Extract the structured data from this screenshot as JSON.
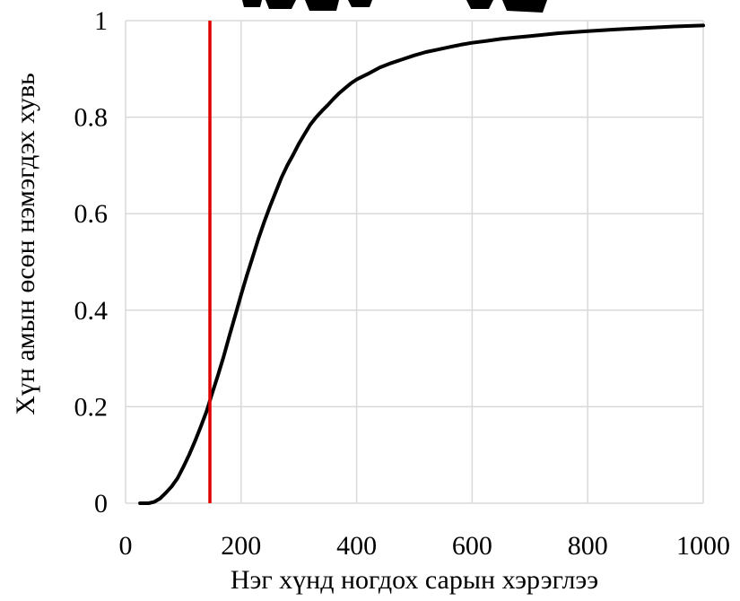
{
  "chart_data": {
    "type": "line",
    "title": "",
    "xlabel": "Нэг хүнд ногдох сарын хэрэглээ",
    "ylabel": "Хүн амын өсөн нэмэгдэх хувь",
    "xlim": [
      0,
      1000
    ],
    "ylim": [
      0,
      1
    ],
    "x_ticks": [
      0,
      200,
      400,
      600,
      800,
      1000
    ],
    "y_ticks": [
      0,
      0.2,
      0.4,
      0.6,
      0.8,
      1
    ],
    "y_tick_labels": [
      "0",
      "0.2",
      "0.4",
      "0.6",
      "0.8",
      "1"
    ],
    "grid": true,
    "series": [
      {
        "color": "#000000",
        "x": [
          25,
          40,
          50,
          60,
          70,
          80,
          90,
          100,
          110,
          120,
          130,
          140,
          150,
          160,
          170,
          180,
          190,
          200,
          210,
          220,
          230,
          240,
          250,
          260,
          270,
          280,
          290,
          300,
          310,
          320,
          330,
          340,
          350,
          360,
          370,
          380,
          390,
          400,
          420,
          440,
          460,
          480,
          500,
          520,
          540,
          560,
          580,
          600,
          625,
          650,
          675,
          700,
          725,
          750,
          800,
          850,
          900,
          950,
          1000
        ],
        "y": [
          0.0,
          0.0,
          0.003,
          0.01,
          0.022,
          0.035,
          0.052,
          0.075,
          0.1,
          0.128,
          0.158,
          0.19,
          0.228,
          0.265,
          0.305,
          0.348,
          0.39,
          0.432,
          0.472,
          0.51,
          0.548,
          0.583,
          0.615,
          0.645,
          0.675,
          0.7,
          0.722,
          0.745,
          0.765,
          0.785,
          0.8,
          0.813,
          0.825,
          0.838,
          0.85,
          0.86,
          0.87,
          0.878,
          0.89,
          0.903,
          0.912,
          0.92,
          0.928,
          0.935,
          0.94,
          0.945,
          0.95,
          0.954,
          0.958,
          0.962,
          0.965,
          0.968,
          0.971,
          0.974,
          0.978,
          0.982,
          0.985,
          0.988,
          0.99
        ]
      }
    ],
    "reference_lines": [
      {
        "axis": "x",
        "value": 146,
        "color": "#e00000"
      }
    ]
  }
}
